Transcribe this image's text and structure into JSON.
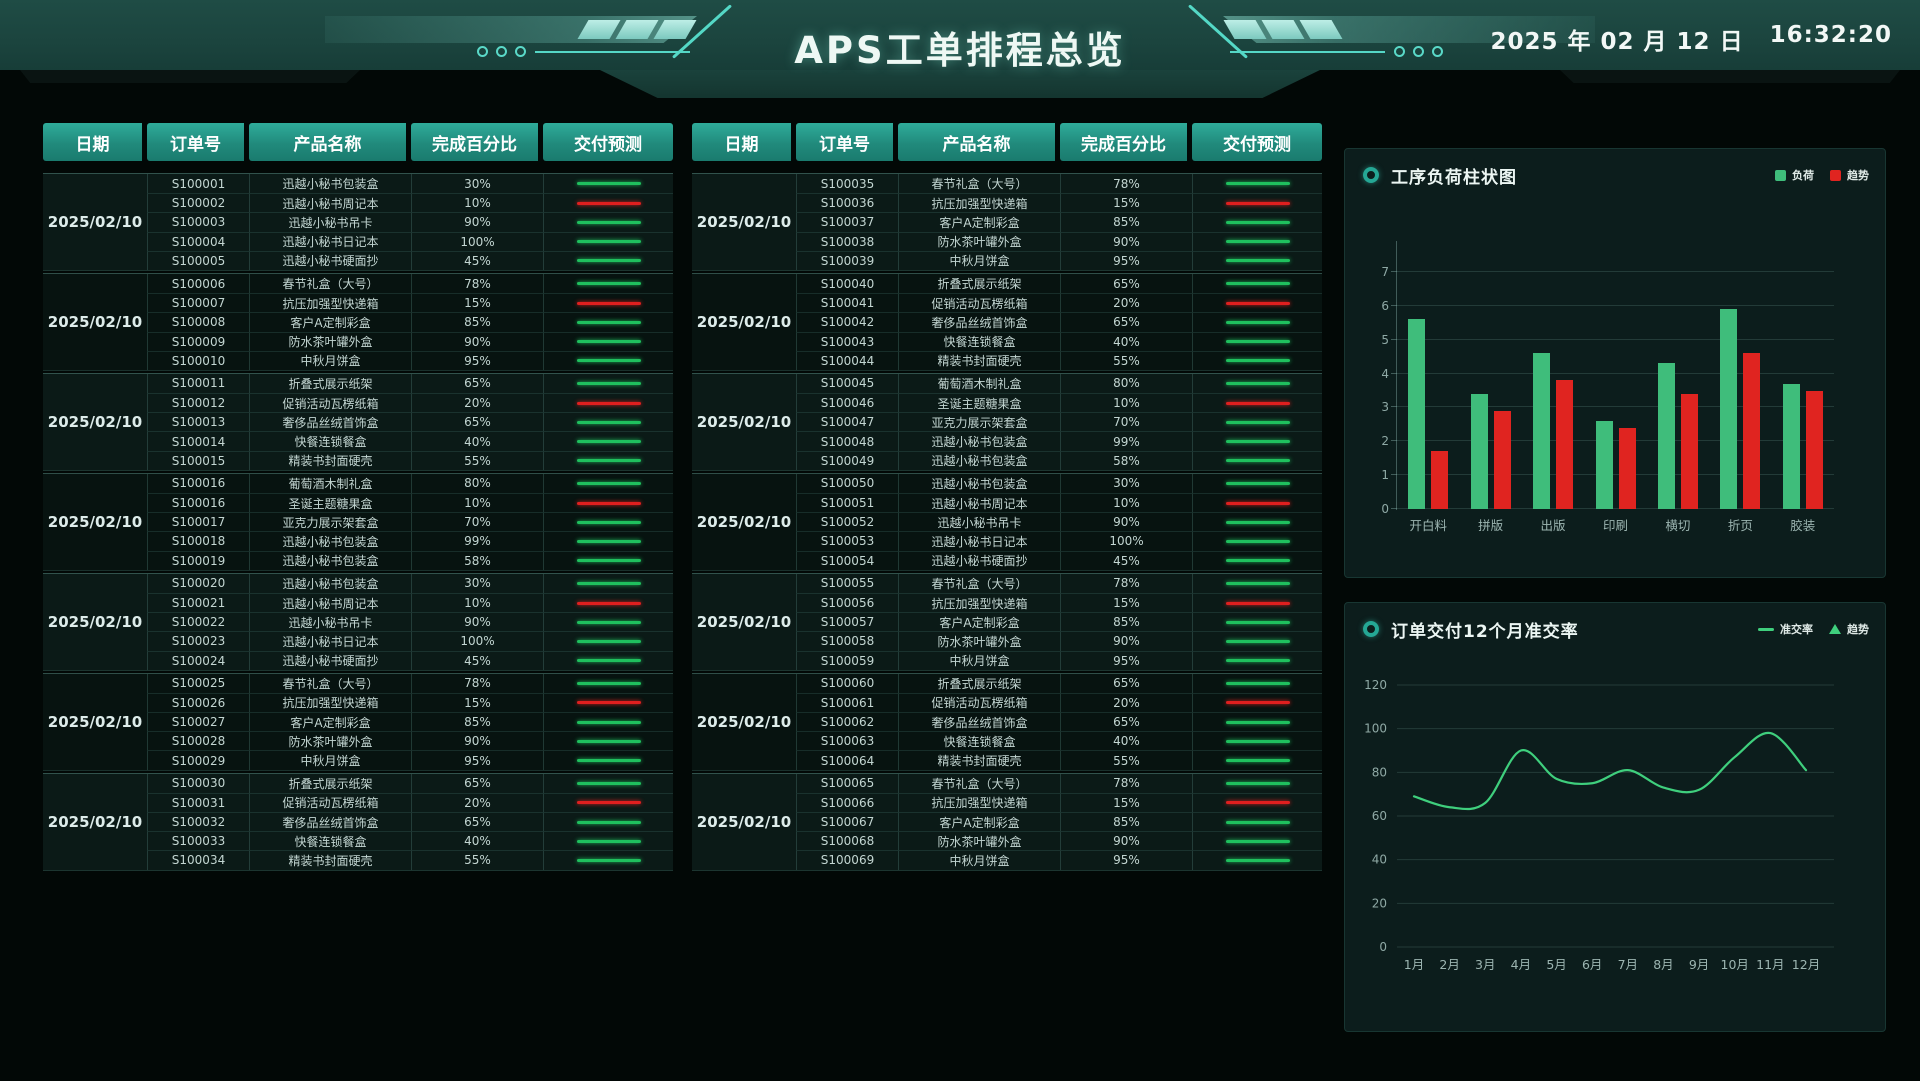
{
  "header": {
    "title": "APS工单排程总览",
    "date": "2025 年 02 月 12 日",
    "time": "16:32:20"
  },
  "table_columns": [
    "日期",
    "订单号",
    "产品名称",
    "完成百分比",
    "交付预测"
  ],
  "forecast_colors": {
    "green": "#1fc05e",
    "red": "#e01f1f"
  },
  "tables": {
    "left": {
      "groups": [
        {
          "date": "2025/02/10",
          "rows": [
            [
              "S100001",
              "迅越小秘书包装盒",
              "30%",
              "green"
            ],
            [
              "S100002",
              "迅越小秘书周记本",
              "10%",
              "red"
            ],
            [
              "S100003",
              "迅越小秘书吊卡",
              "90%",
              "green"
            ],
            [
              "S100004",
              "迅越小秘书日记本",
              "100%",
              "green"
            ],
            [
              "S100005",
              "迅越小秘书硬面抄",
              "45%",
              "green"
            ]
          ]
        },
        {
          "date": "2025/02/10",
          "rows": [
            [
              "S100006",
              "春节礼盒（大号）",
              "78%",
              "green"
            ],
            [
              "S100007",
              "抗压加强型快递箱",
              "15%",
              "red"
            ],
            [
              "S100008",
              "客户A定制彩盒",
              "85%",
              "green"
            ],
            [
              "S100009",
              "防水茶叶罐外盒",
              "90%",
              "green"
            ],
            [
              "S100010",
              "中秋月饼盒",
              "95%",
              "green"
            ]
          ]
        },
        {
          "date": "2025/02/10",
          "rows": [
            [
              "S100011",
              "折叠式展示纸架",
              "65%",
              "green"
            ],
            [
              "S100012",
              "促销活动瓦楞纸箱",
              "20%",
              "red"
            ],
            [
              "S100013",
              "奢侈品丝绒首饰盒",
              "65%",
              "green"
            ],
            [
              "S100014",
              "快餐连锁餐盒",
              "40%",
              "green"
            ],
            [
              "S100015",
              "精装书封面硬壳",
              "55%",
              "green"
            ]
          ]
        },
        {
          "date": "2025/02/10",
          "rows": [
            [
              "S100016",
              "葡萄酒木制礼盒",
              "80%",
              "green"
            ],
            [
              "S100016",
              "圣诞主题糖果盒",
              "10%",
              "red"
            ],
            [
              "S100017",
              "亚克力展示架套盒",
              "70%",
              "green"
            ],
            [
              "S100018",
              "迅越小秘书包装盒",
              "99%",
              "green"
            ],
            [
              "S100019",
              "迅越小秘书包装盒",
              "58%",
              "green"
            ]
          ]
        },
        {
          "date": "2025/02/10",
          "rows": [
            [
              "S100020",
              "迅越小秘书包装盒",
              "30%",
              "green"
            ],
            [
              "S100021",
              "迅越小秘书周记本",
              "10%",
              "red"
            ],
            [
              "S100022",
              "迅越小秘书吊卡",
              "90%",
              "green"
            ],
            [
              "S100023",
              "迅越小秘书日记本",
              "100%",
              "green"
            ],
            [
              "S100024",
              "迅越小秘书硬面抄",
              "45%",
              "green"
            ]
          ]
        },
        {
          "date": "2025/02/10",
          "rows": [
            [
              "S100025",
              "春节礼盒（大号）",
              "78%",
              "green"
            ],
            [
              "S100026",
              "抗压加强型快递箱",
              "15%",
              "red"
            ],
            [
              "S100027",
              "客户A定制彩盒",
              "85%",
              "green"
            ],
            [
              "S100028",
              "防水茶叶罐外盒",
              "90%",
              "green"
            ],
            [
              "S100029",
              "中秋月饼盒",
              "95%",
              "green"
            ]
          ]
        },
        {
          "date": "2025/02/10",
          "rows": [
            [
              "S100030",
              "折叠式展示纸架",
              "65%",
              "green"
            ],
            [
              "S100031",
              "促销活动瓦楞纸箱",
              "20%",
              "red"
            ],
            [
              "S100032",
              "奢侈品丝绒首饰盒",
              "65%",
              "green"
            ],
            [
              "S100033",
              "快餐连锁餐盒",
              "40%",
              "green"
            ],
            [
              "S100034",
              "精装书封面硬壳",
              "55%",
              "green"
            ]
          ]
        }
      ]
    },
    "right": {
      "groups": [
        {
          "date": "2025/02/10",
          "rows": [
            [
              "S100035",
              "春节礼盒（大号）",
              "78%",
              "green"
            ],
            [
              "S100036",
              "抗压加强型快递箱",
              "15%",
              "red"
            ],
            [
              "S100037",
              "客户A定制彩盒",
              "85%",
              "green"
            ],
            [
              "S100038",
              "防水茶叶罐外盒",
              "90%",
              "green"
            ],
            [
              "S100039",
              "中秋月饼盒",
              "95%",
              "green"
            ]
          ]
        },
        {
          "date": "2025/02/10",
          "rows": [
            [
              "S100040",
              "折叠式展示纸架",
              "65%",
              "green"
            ],
            [
              "S100041",
              "促销活动瓦楞纸箱",
              "20%",
              "red"
            ],
            [
              "S100042",
              "奢侈品丝绒首饰盒",
              "65%",
              "green"
            ],
            [
              "S100043",
              "快餐连锁餐盒",
              "40%",
              "green"
            ],
            [
              "S100044",
              "精装书封面硬壳",
              "55%",
              "green"
            ]
          ]
        },
        {
          "date": "2025/02/10",
          "rows": [
            [
              "S100045",
              "葡萄酒木制礼盒",
              "80%",
              "green"
            ],
            [
              "S100046",
              "圣诞主题糖果盒",
              "10%",
              "red"
            ],
            [
              "S100047",
              "亚克力展示架套盒",
              "70%",
              "green"
            ],
            [
              "S100048",
              "迅越小秘书包装盒",
              "99%",
              "green"
            ],
            [
              "S100049",
              "迅越小秘书包装盒",
              "58%",
              "green"
            ]
          ]
        },
        {
          "date": "2025/02/10",
          "rows": [
            [
              "S100050",
              "迅越小秘书包装盒",
              "30%",
              "green"
            ],
            [
              "S100051",
              "迅越小秘书周记本",
              "10%",
              "red"
            ],
            [
              "S100052",
              "迅越小秘书吊卡",
              "90%",
              "green"
            ],
            [
              "S100053",
              "迅越小秘书日记本",
              "100%",
              "green"
            ],
            [
              "S100054",
              "迅越小秘书硬面抄",
              "45%",
              "green"
            ]
          ]
        },
        {
          "date": "2025/02/10",
          "rows": [
            [
              "S100055",
              "春节礼盒（大号）",
              "78%",
              "green"
            ],
            [
              "S100056",
              "抗压加强型快递箱",
              "15%",
              "red"
            ],
            [
              "S100057",
              "客户A定制彩盒",
              "85%",
              "green"
            ],
            [
              "S100058",
              "防水茶叶罐外盒",
              "90%",
              "green"
            ],
            [
              "S100059",
              "中秋月饼盒",
              "95%",
              "green"
            ]
          ]
        },
        {
          "date": "2025/02/10",
          "rows": [
            [
              "S100060",
              "折叠式展示纸架",
              "65%",
              "green"
            ],
            [
              "S100061",
              "促销活动瓦楞纸箱",
              "20%",
              "red"
            ],
            [
              "S100062",
              "奢侈品丝绒首饰盒",
              "65%",
              "green"
            ],
            [
              "S100063",
              "快餐连锁餐盒",
              "40%",
              "green"
            ],
            [
              "S100064",
              "精装书封面硬壳",
              "55%",
              "green"
            ]
          ]
        },
        {
          "date": "2025/02/10",
          "rows": [
            [
              "S100065",
              "春节礼盒（大号）",
              "78%",
              "green"
            ],
            [
              "S100066",
              "抗压加强型快递箱",
              "15%",
              "red"
            ],
            [
              "S100067",
              "客户A定制彩盒",
              "85%",
              "green"
            ],
            [
              "S100068",
              "防水茶叶罐外盒",
              "90%",
              "green"
            ],
            [
              "S100069",
              "中秋月饼盒",
              "95%",
              "green"
            ]
          ]
        }
      ]
    }
  },
  "chart_data": [
    {
      "type": "bar",
      "title": "工序负荷柱状图",
      "categories": [
        "开白料",
        "拼版",
        "出版",
        "印刷",
        "横切",
        "折页",
        "胶装"
      ],
      "series": [
        {
          "name": "负荷",
          "color": "#3fbd7b",
          "values": [
            5.6,
            3.4,
            4.6,
            2.6,
            4.3,
            5.9,
            3.7
          ]
        },
        {
          "name": "趋势",
          "color": "#e02420",
          "values": [
            1.7,
            2.9,
            3.8,
            2.4,
            3.4,
            4.6,
            3.5
          ]
        }
      ],
      "xlabel": "",
      "ylabel": "",
      "ylim": [
        0,
        7
      ],
      "yticks": [
        0,
        1,
        2,
        3,
        4,
        5,
        6,
        7
      ],
      "grid": true,
      "legend_position": "top-right"
    },
    {
      "type": "line",
      "title": "订单交付12个月准交率",
      "categories": [
        "1月",
        "2月",
        "3月",
        "4月",
        "5月",
        "6月",
        "7月",
        "8月",
        "9月",
        "10月",
        "11月",
        "12月"
      ],
      "series": [
        {
          "name": "准交率",
          "color": "#3fcf7d",
          "values": [
            69,
            64,
            66,
            90,
            77,
            75,
            81,
            73,
            72,
            87,
            98,
            81
          ]
        }
      ],
      "legend": [
        {
          "label": "准交率",
          "marker": "line",
          "color": "#3fcf7d"
        },
        {
          "label": "趋势",
          "marker": "triangle",
          "color": "#3fcf7d"
        }
      ],
      "xlabel": "",
      "ylabel": "",
      "ylim": [
        0,
        120
      ],
      "yticks": [
        0,
        20,
        40,
        60,
        80,
        100,
        120
      ],
      "grid": true,
      "legend_position": "top-right"
    }
  ]
}
